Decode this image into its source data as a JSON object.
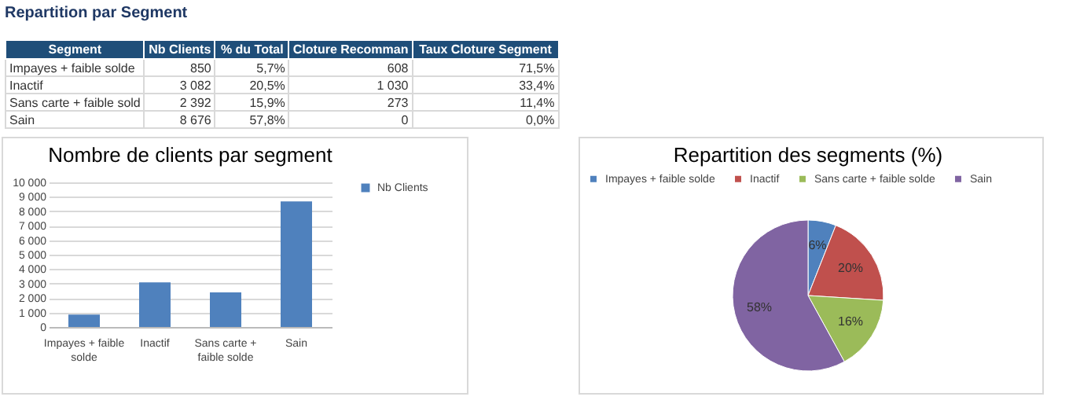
{
  "chart_data": [
    {
      "type": "other",
      "title": "Repartition par Segment",
      "annotations": [
        "Segment",
        "Nb Clients",
        "% du Total",
        "Cloture Recomman",
        "Taux Cloture Segment",
        "Impayes + faible solde",
        "850",
        "5,7%",
        "608",
        "71,5%",
        "Inactif",
        "3 082",
        "20,5%",
        "1 030",
        "33,4%",
        "Sans carte + faible sold",
        "2 392",
        "15,9%",
        "273",
        "11,4%",
        "Sain",
        "8 676",
        "57,8%",
        "0",
        "0,0%"
      ]
    },
    {
      "type": "bar",
      "title": "Nombre de clients par segment",
      "categories": [
        "Impayes + faible solde",
        "Inactif",
        "Sans carte + faible solde",
        "Sain"
      ],
      "series": [
        {
          "name": "Nb Clients",
          "color": "#4f81bd",
          "values": [
            850,
            3082,
            2392,
            8676
          ]
        }
      ],
      "ylim": [
        0,
        10000
      ],
      "yticks": [
        0,
        {
          "value": 1000,
          "label": "1 000"
        },
        {
          "value": 2000,
          "label": "2 000"
        },
        {
          "value": 3000,
          "label": "3 000"
        },
        {
          "value": 4000,
          "label": "4 000"
        },
        {
          "value": 5000,
          "label": "5 000"
        },
        {
          "value": 6000,
          "label": "6 000"
        },
        {
          "value": 7000,
          "label": "7 000"
        },
        {
          "value": 8000,
          "label": "8 000"
        },
        {
          "value": 9000,
          "label": "9 000"
        },
        {
          "value": 10000,
          "label": "10 000"
        }
      ],
      "grid": "y",
      "legend": "right"
    },
    {
      "type": "pie",
      "title": "Repartition des segments (%)",
      "categories": [
        "Impayes + faible solde",
        "Inactif",
        "Sans carte + faible solde",
        "Sain"
      ],
      "values": [
        6,
        20,
        16,
        58
      ],
      "colors": [
        "#4f81bd",
        "#c0504d",
        "#9bbb59",
        "#8064a2"
      ],
      "value_labels": [
        "6%",
        "20%",
        "16%",
        "58%"
      ],
      "legend": "top"
    }
  ]
}
